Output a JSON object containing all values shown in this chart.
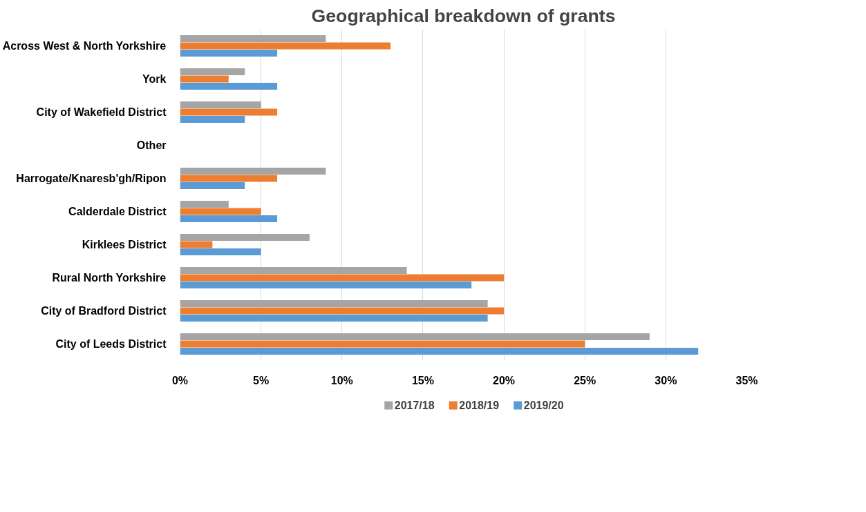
{
  "chart_data": {
    "type": "bar",
    "orientation": "horizontal",
    "title": "Geographical breakdown of grants",
    "categories": [
      "Across West & North Yorkshire",
      "York",
      "City of Wakefield District",
      "Other",
      "Harrogate/Knaresb'gh/Ripon",
      "Calderdale District",
      "Kirklees District",
      "Rural North Yorkshire",
      "City of Bradford District",
      "City of Leeds District"
    ],
    "series": [
      {
        "name": "2017/18",
        "color": "#a5a5a5",
        "values": [
          9,
          4,
          5,
          null,
          9,
          3,
          8,
          14,
          19,
          29
        ]
      },
      {
        "name": "2018/19",
        "color": "#ed7d31",
        "values": [
          13,
          3,
          6,
          null,
          6,
          5,
          2,
          20,
          20,
          25
        ]
      },
      {
        "name": "2019/20",
        "color": "#5b9bd5",
        "values": [
          6,
          6,
          4,
          null,
          4,
          6,
          5,
          18,
          19,
          32
        ]
      }
    ],
    "xlim": [
      0,
      35
    ],
    "xticks": [
      {
        "value": 0,
        "label": "0%"
      },
      {
        "value": 5,
        "label": "5%"
      },
      {
        "value": 10,
        "label": "10%"
      },
      {
        "value": 15,
        "label": "15%"
      },
      {
        "value": 20,
        "label": "20%"
      },
      {
        "value": 25,
        "label": "25%"
      },
      {
        "value": 30,
        "label": "30%"
      },
      {
        "value": 35,
        "label": "35%"
      }
    ],
    "grid": "x",
    "legend": "bottom"
  }
}
